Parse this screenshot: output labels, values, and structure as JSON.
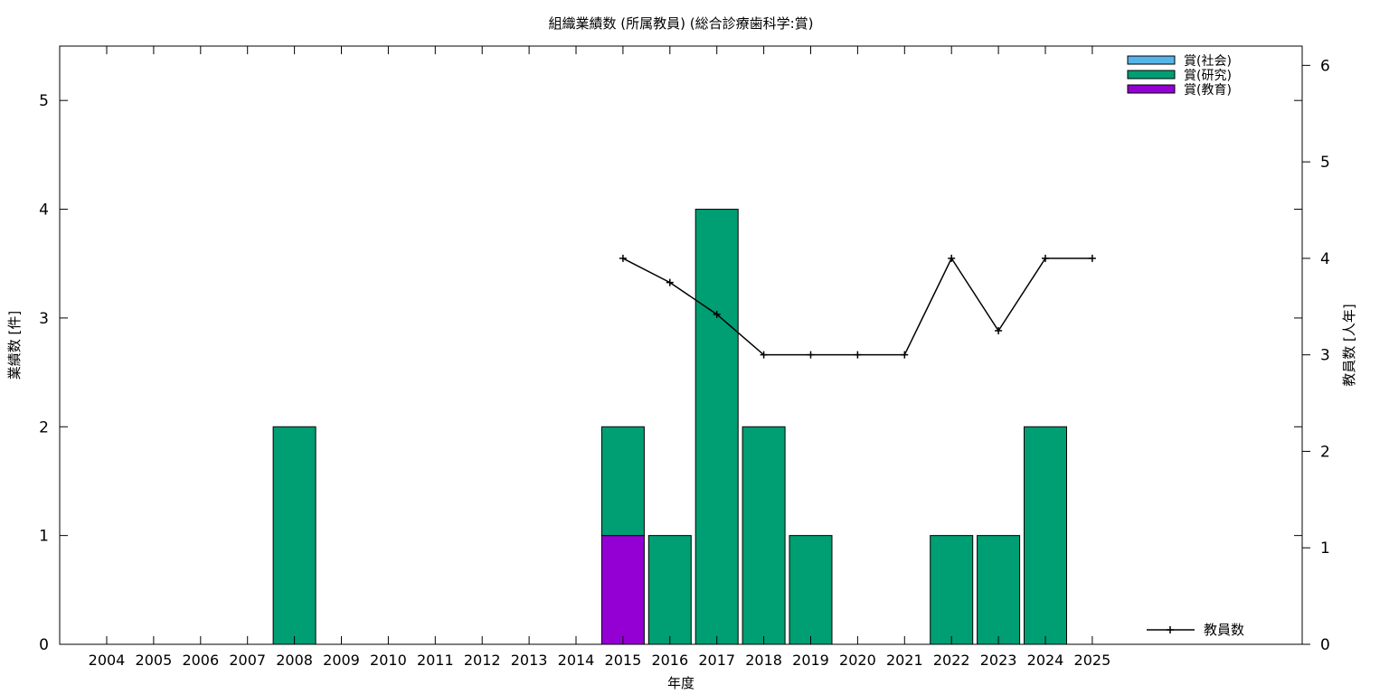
{
  "chart_data": {
    "type": "bar",
    "title": "組織業績数 (所属教員) (総合診療歯科学:賞)",
    "xlabel": "年度",
    "ylabel": "業績数 [件]",
    "y2label": "教員数 [人年]",
    "categories": [
      "2004",
      "2005",
      "2006",
      "2007",
      "2008",
      "2009",
      "2010",
      "2011",
      "2012",
      "2013",
      "2014",
      "2015",
      "2016",
      "2017",
      "2018",
      "2019",
      "2020",
      "2021",
      "2022",
      "2023",
      "2024",
      "2025"
    ],
    "ylim": [
      0,
      5.5
    ],
    "yticks": [
      0,
      1,
      2,
      3,
      4,
      5
    ],
    "y2lim": [
      0,
      6.2
    ],
    "y2ticks": [
      0,
      1,
      2,
      3,
      4,
      5,
      6
    ],
    "stacked": true,
    "series": [
      {
        "name": "賞(社会)",
        "color": "#56b4e9",
        "values": [
          0,
          0,
          0,
          0,
          0,
          0,
          0,
          0,
          0,
          0,
          0,
          0,
          0,
          0,
          0,
          0,
          0,
          0,
          0,
          0,
          0,
          0
        ]
      },
      {
        "name": "賞(研究)",
        "color": "#009e73",
        "values": [
          0,
          0,
          0,
          0,
          2,
          0,
          0,
          0,
          0,
          0,
          0,
          1,
          1,
          4,
          2,
          1,
          0,
          0,
          1,
          1,
          2,
          0
        ]
      },
      {
        "name": "賞(教育)",
        "color": "#9400d3",
        "values": [
          0,
          0,
          0,
          0,
          0,
          0,
          0,
          0,
          0,
          0,
          0,
          1,
          0,
          0,
          0,
          0,
          0,
          0,
          0,
          0,
          0,
          0
        ]
      }
    ],
    "line_series": {
      "name": "教員数",
      "axis": "y2",
      "color": "#000000",
      "x": [
        "2015",
        "2016",
        "2017",
        "2018",
        "2019",
        "2020",
        "2021",
        "2022",
        "2023",
        "2024",
        "2025"
      ],
      "values": [
        4,
        3.75,
        3.42,
        3,
        3,
        3,
        3,
        4,
        3.25,
        4,
        4
      ]
    },
    "legend_placement": "top-right",
    "line_legend_placement": "bottom-right",
    "grid": false
  }
}
